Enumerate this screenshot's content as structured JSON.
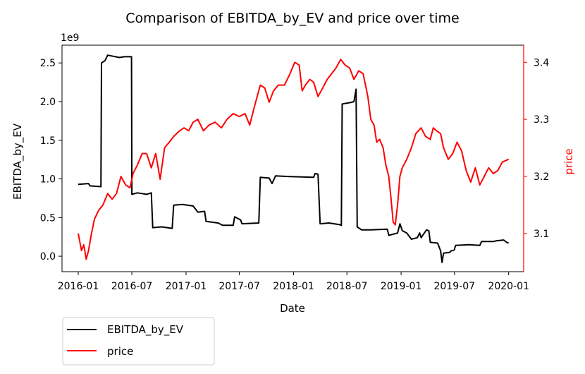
{
  "chart_data": {
    "type": "line",
    "title": "Comparison of EBITDA_by_EV and price over time",
    "xlabel": "Date",
    "ylabel_left": "EBITDA_by_EV",
    "ylabel_right": "price",
    "left_axis_exponent": "1e9",
    "x_ticks": [
      "2016-01",
      "2016-07",
      "2017-01",
      "2017-07",
      "2018-01",
      "2018-07",
      "2019-01",
      "2019-07",
      "2020-01"
    ],
    "y_left_ticks": [
      "0.0",
      "0.5",
      "1.0",
      "1.5",
      "2.0",
      "2.5"
    ],
    "y_right_ticks": [
      "3.1",
      "3.2",
      "3.3",
      "3.4"
    ],
    "ylim_left": [
      -0.2,
      2.73
    ],
    "ylim_right": [
      3.033,
      3.43
    ],
    "xlim": [
      "2015-11-07",
      "2020-02-21"
    ],
    "legend_position": "below-left",
    "grid": false,
    "colors": {
      "EBITDA_by_EV": "#000000",
      "price": "#ff0000"
    },
    "series": [
      {
        "name": "EBITDA_by_EV",
        "axis": "left",
        "unit_scale": "1e9",
        "points": [
          [
            "2016-01-01",
            0.93
          ],
          [
            "2016-02-05",
            0.94
          ],
          [
            "2016-02-10",
            0.91
          ],
          [
            "2016-03-18",
            0.9
          ],
          [
            "2016-03-20",
            2.5
          ],
          [
            "2016-04-01",
            2.53
          ],
          [
            "2016-04-10",
            2.6
          ],
          [
            "2016-05-20",
            2.57
          ],
          [
            "2016-06-05",
            2.58
          ],
          [
            "2016-06-30",
            2.58
          ],
          [
            "2016-07-01",
            0.8
          ],
          [
            "2016-07-20",
            0.82
          ],
          [
            "2016-08-20",
            0.8
          ],
          [
            "2016-09-05",
            0.82
          ],
          [
            "2016-09-10",
            0.37
          ],
          [
            "2016-10-10",
            0.38
          ],
          [
            "2016-11-15",
            0.36
          ],
          [
            "2016-11-20",
            0.66
          ],
          [
            "2016-12-20",
            0.67
          ],
          [
            "2017-01-25",
            0.65
          ],
          [
            "2017-02-10",
            0.57
          ],
          [
            "2017-03-05",
            0.58
          ],
          [
            "2017-03-10",
            0.45
          ],
          [
            "2017-04-20",
            0.43
          ],
          [
            "2017-05-05",
            0.4
          ],
          [
            "2017-06-10",
            0.4
          ],
          [
            "2017-06-15",
            0.51
          ],
          [
            "2017-07-05",
            0.47
          ],
          [
            "2017-07-10",
            0.42
          ],
          [
            "2017-09-05",
            0.43
          ],
          [
            "2017-09-10",
            1.02
          ],
          [
            "2017-10-10",
            1.01
          ],
          [
            "2017-10-20",
            0.94
          ],
          [
            "2017-11-01",
            1.04
          ],
          [
            "2017-12-20",
            1.03
          ],
          [
            "2018-03-10",
            1.02
          ],
          [
            "2018-03-15",
            1.07
          ],
          [
            "2018-03-25",
            1.06
          ],
          [
            "2018-04-01",
            0.42
          ],
          [
            "2018-05-01",
            0.43
          ],
          [
            "2018-06-05",
            0.41
          ],
          [
            "2018-06-12",
            0.4
          ],
          [
            "2018-06-15",
            1.97
          ],
          [
            "2018-07-15",
            1.99
          ],
          [
            "2018-07-25",
            2.0
          ],
          [
            "2018-08-01",
            2.16
          ],
          [
            "2018-08-05",
            0.38
          ],
          [
            "2018-08-20",
            0.34
          ],
          [
            "2018-09-20",
            0.34
          ],
          [
            "2018-11-15",
            0.35
          ],
          [
            "2018-11-20",
            0.27
          ],
          [
            "2018-12-20",
            0.3
          ],
          [
            "2018-12-28",
            0.42
          ],
          [
            "2019-01-05",
            0.33
          ],
          [
            "2019-01-20",
            0.3
          ],
          [
            "2019-02-05",
            0.22
          ],
          [
            "2019-02-25",
            0.24
          ],
          [
            "2019-03-05",
            0.3
          ],
          [
            "2019-03-10",
            0.24
          ],
          [
            "2019-03-28",
            0.34
          ],
          [
            "2019-04-05",
            0.33
          ],
          [
            "2019-04-10",
            0.18
          ],
          [
            "2019-05-05",
            0.17
          ],
          [
            "2019-05-15",
            0.07
          ],
          [
            "2019-05-20",
            -0.08
          ],
          [
            "2019-05-25",
            0.04
          ],
          [
            "2019-06-15",
            0.05
          ],
          [
            "2019-06-20",
            0.07
          ],
          [
            "2019-06-30",
            0.08
          ],
          [
            "2019-07-05",
            0.14
          ],
          [
            "2019-08-20",
            0.15
          ],
          [
            "2019-09-25",
            0.14
          ],
          [
            "2019-10-01",
            0.19
          ],
          [
            "2019-11-10",
            0.19
          ],
          [
            "2019-11-20",
            0.2
          ],
          [
            "2019-12-15",
            0.21
          ],
          [
            "2019-12-25",
            0.18
          ],
          [
            "2020-01-01",
            0.17
          ]
        ]
      },
      {
        "name": "price",
        "axis": "right",
        "points": [
          [
            "2016-01-01",
            3.1
          ],
          [
            "2016-01-12",
            3.07
          ],
          [
            "2016-01-20",
            3.08
          ],
          [
            "2016-01-28",
            3.055
          ],
          [
            "2016-02-05",
            3.07
          ],
          [
            "2016-02-15",
            3.1
          ],
          [
            "2016-02-25",
            3.125
          ],
          [
            "2016-03-10",
            3.14
          ],
          [
            "2016-03-25",
            3.15
          ],
          [
            "2016-04-10",
            3.17
          ],
          [
            "2016-04-25",
            3.16
          ],
          [
            "2016-05-10",
            3.17
          ],
          [
            "2016-05-25",
            3.2
          ],
          [
            "2016-06-10",
            3.185
          ],
          [
            "2016-06-25",
            3.18
          ],
          [
            "2016-07-05",
            3.205
          ],
          [
            "2016-07-20",
            3.22
          ],
          [
            "2016-08-05",
            3.24
          ],
          [
            "2016-08-20",
            3.24
          ],
          [
            "2016-09-05",
            3.215
          ],
          [
            "2016-09-20",
            3.24
          ],
          [
            "2016-10-05",
            3.195
          ],
          [
            "2016-10-20",
            3.25
          ],
          [
            "2016-11-05",
            3.26
          ],
          [
            "2016-11-20",
            3.27
          ],
          [
            "2016-12-10",
            3.28
          ],
          [
            "2016-12-25",
            3.285
          ],
          [
            "2017-01-10",
            3.28
          ],
          [
            "2017-01-25",
            3.295
          ],
          [
            "2017-02-10",
            3.3
          ],
          [
            "2017-03-01",
            3.28
          ],
          [
            "2017-03-20",
            3.29
          ],
          [
            "2017-04-10",
            3.295
          ],
          [
            "2017-05-01",
            3.285
          ],
          [
            "2017-05-20",
            3.3
          ],
          [
            "2017-06-10",
            3.31
          ],
          [
            "2017-07-01",
            3.305
          ],
          [
            "2017-07-20",
            3.31
          ],
          [
            "2017-08-05",
            3.29
          ],
          [
            "2017-08-20",
            3.32
          ],
          [
            "2017-09-10",
            3.36
          ],
          [
            "2017-09-25",
            3.355
          ],
          [
            "2017-10-10",
            3.33
          ],
          [
            "2017-10-25",
            3.35
          ],
          [
            "2017-11-10",
            3.36
          ],
          [
            "2017-12-01",
            3.36
          ],
          [
            "2017-12-20",
            3.38
          ],
          [
            "2018-01-05",
            3.4
          ],
          [
            "2018-01-20",
            3.395
          ],
          [
            "2018-01-30",
            3.35
          ],
          [
            "2018-02-10",
            3.36
          ],
          [
            "2018-02-25",
            3.37
          ],
          [
            "2018-03-10",
            3.365
          ],
          [
            "2018-03-25",
            3.34
          ],
          [
            "2018-04-10",
            3.355
          ],
          [
            "2018-04-25",
            3.37
          ],
          [
            "2018-05-10",
            3.38
          ],
          [
            "2018-05-25",
            3.39
          ],
          [
            "2018-06-10",
            3.405
          ],
          [
            "2018-06-25",
            3.395
          ],
          [
            "2018-07-10",
            3.39
          ],
          [
            "2018-07-25",
            3.37
          ],
          [
            "2018-08-10",
            3.385
          ],
          [
            "2018-08-25",
            3.38
          ],
          [
            "2018-09-10",
            3.34
          ],
          [
            "2018-09-20",
            3.3
          ],
          [
            "2018-10-01",
            3.29
          ],
          [
            "2018-10-10",
            3.26
          ],
          [
            "2018-10-20",
            3.265
          ],
          [
            "2018-11-01",
            3.25
          ],
          [
            "2018-11-10",
            3.22
          ],
          [
            "2018-11-20",
            3.2
          ],
          [
            "2018-11-28",
            3.16
          ],
          [
            "2018-12-05",
            3.12
          ],
          [
            "2018-12-12",
            3.115
          ],
          [
            "2018-12-20",
            3.15
          ],
          [
            "2018-12-28",
            3.2
          ],
          [
            "2019-01-05",
            3.215
          ],
          [
            "2019-01-20",
            3.23
          ],
          [
            "2019-02-05",
            3.25
          ],
          [
            "2019-02-20",
            3.275
          ],
          [
            "2019-03-10",
            3.285
          ],
          [
            "2019-03-25",
            3.27
          ],
          [
            "2019-04-10",
            3.265
          ],
          [
            "2019-04-20",
            3.285
          ],
          [
            "2019-05-01",
            3.28
          ],
          [
            "2019-05-15",
            3.275
          ],
          [
            "2019-05-25",
            3.25
          ],
          [
            "2019-06-10",
            3.23
          ],
          [
            "2019-06-25",
            3.24
          ],
          [
            "2019-07-10",
            3.26
          ],
          [
            "2019-07-25",
            3.245
          ],
          [
            "2019-08-10",
            3.21
          ],
          [
            "2019-08-25",
            3.19
          ],
          [
            "2019-09-10",
            3.215
          ],
          [
            "2019-09-25",
            3.185
          ],
          [
            "2019-10-10",
            3.2
          ],
          [
            "2019-10-25",
            3.215
          ],
          [
            "2019-11-10",
            3.205
          ],
          [
            "2019-11-25",
            3.21
          ],
          [
            "2019-12-10",
            3.225
          ],
          [
            "2020-01-01",
            3.23
          ]
        ]
      }
    ]
  }
}
